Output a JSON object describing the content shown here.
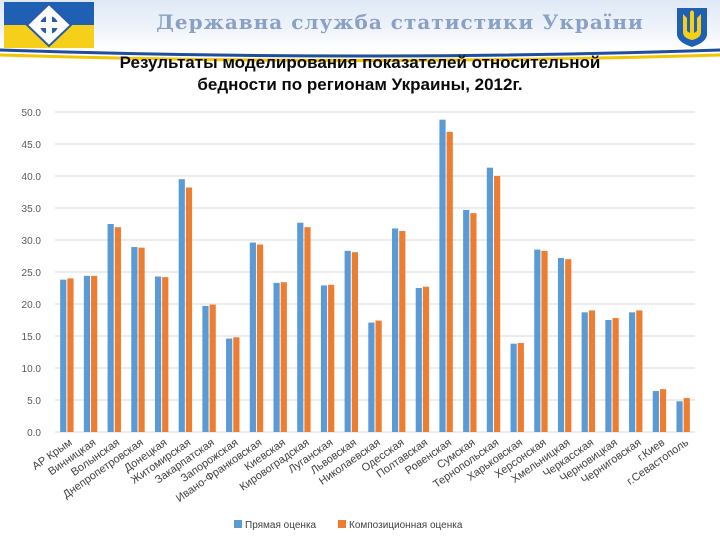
{
  "header": {
    "agency_title": "Державна служба статистики України"
  },
  "colors": {
    "direct": "#5b9bd5",
    "composite": "#ed7d31",
    "accent_blue": "#1f4e9c",
    "accent_yellow": "#f2c500"
  },
  "icons": {
    "left_logo": "ukrstat-logo-icon",
    "emblem": "trident-emblem-icon"
  },
  "chart_data": {
    "type": "bar",
    "title_line1": "Результаты моделирования показателей относительной",
    "title_line2": "бедности по регионам Украины, 2012г.",
    "xlabel": "",
    "ylabel": "",
    "ylim": [
      0,
      50
    ],
    "yticks": [
      "0.0",
      "5.0",
      "10.0",
      "15.0",
      "20.0",
      "25.0",
      "30.0",
      "35.0",
      "40.0",
      "45.0",
      "50.0"
    ],
    "grid": true,
    "legend_position": "bottom",
    "categories": [
      "АР Крым",
      "Винницкая",
      "Волынская",
      "Днепропетровская",
      "Донецкая",
      "Житомирская",
      "Закарпатская",
      "Запорожская",
      "Ивано-Франковская",
      "Киевская",
      "Кировоградская",
      "Луганская",
      "Львовская",
      "Николаевская",
      "Одесская",
      "Полтавская",
      "Ровенская",
      "Сумская",
      "Тернопольская",
      "Харьковская",
      "Херсонская",
      "Хмельницкая",
      "Черкасская",
      "Черновицкая",
      "Черниговская",
      "г.Киев",
      "г.Севастополь"
    ],
    "series": [
      {
        "name": "Прямая оценка",
        "values": [
          23.8,
          24.4,
          32.5,
          28.9,
          24.3,
          39.5,
          19.7,
          14.6,
          29.6,
          23.3,
          32.7,
          22.9,
          28.3,
          17.1,
          31.8,
          22.5,
          48.8,
          34.7,
          41.3,
          13.8,
          28.5,
          27.2,
          18.7,
          17.5,
          18.7,
          6.4,
          4.8
        ]
      },
      {
        "name": "Композиционная оценка",
        "values": [
          24.0,
          24.4,
          32.0,
          28.8,
          24.2,
          38.2,
          19.9,
          14.8,
          29.3,
          23.4,
          32.0,
          23.0,
          28.1,
          17.4,
          31.4,
          22.7,
          46.9,
          34.2,
          40.0,
          13.9,
          28.3,
          27.0,
          19.0,
          17.8,
          19.0,
          6.7,
          5.3
        ]
      }
    ]
  }
}
